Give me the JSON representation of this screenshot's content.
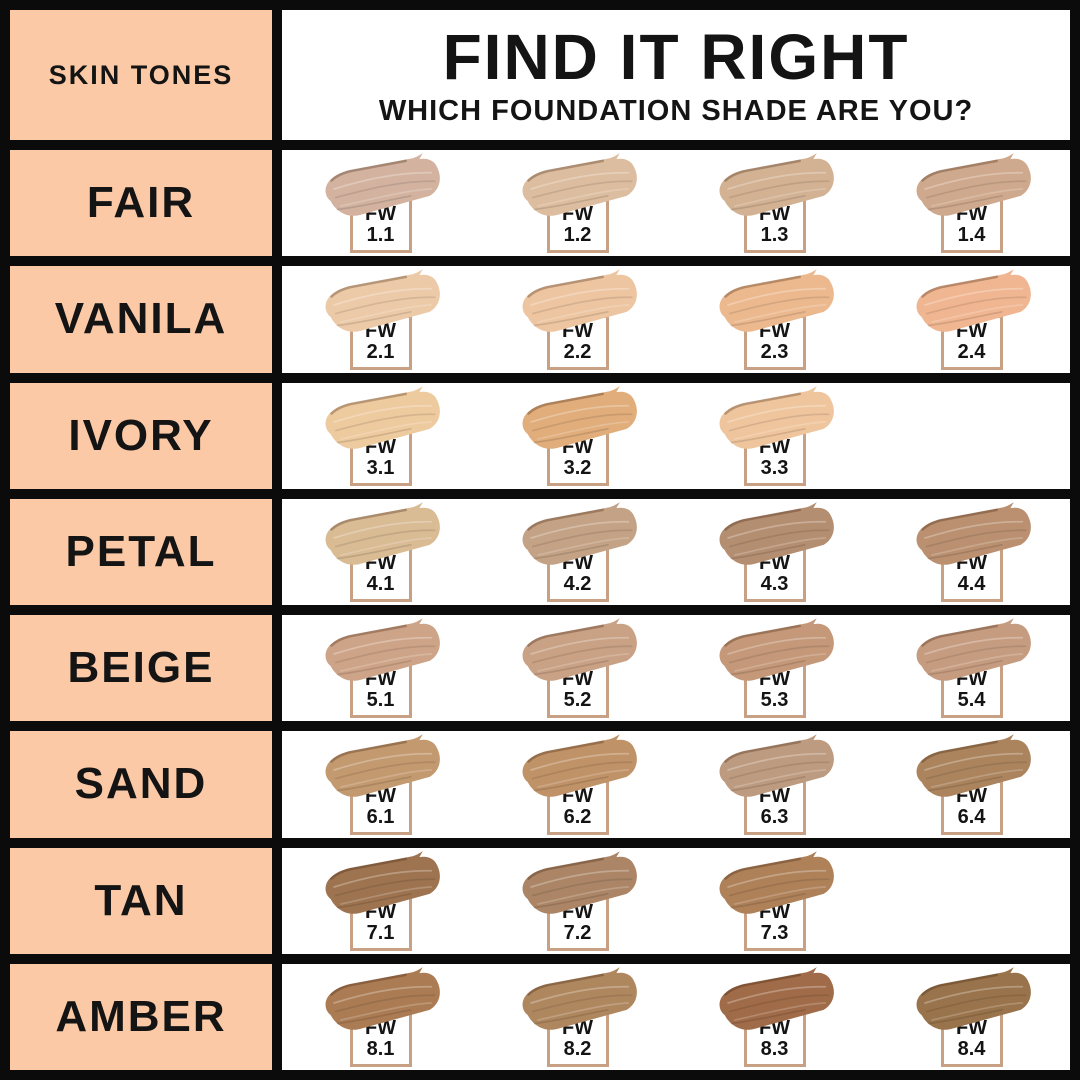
{
  "header": {
    "skin_tones_label": "SKIN TONES",
    "title": "FIND IT RIGHT",
    "subtitle": "WHICH FOUNDATION SHADE ARE YOU?"
  },
  "colors": {
    "grid_black": "#0b0b0b",
    "tone_cell_peach": "#fbc9a6",
    "tag_border_tan": "#c8a184",
    "text_black": "#141414",
    "cell_white": "#ffffff"
  },
  "chart_data": {
    "type": "table",
    "title": "FIND IT RIGHT",
    "subtitle": "WHICH FOUNDATION SHADE ARE YOU?",
    "row_header": "SKIN TONES",
    "categories": [
      "FAIR",
      "VANILA",
      "IVORY",
      "PETAL",
      "BEIGE",
      "SAND",
      "TAN",
      "AMBER"
    ],
    "values": [
      [
        "FW 1.1",
        "FW 1.2",
        "FW 1.3",
        "FW 1.4"
      ],
      [
        "FW 2.1",
        "FW 2.2",
        "FW 2.3",
        "FW 2.4"
      ],
      [
        "FW 3.1",
        "FW 3.2",
        "FW 3.3"
      ],
      [
        "FW 4.1",
        "FW 4.2",
        "FW 4.3",
        "FW 4.4"
      ],
      [
        "FW 5.1",
        "FW 5.2",
        "FW 5.3",
        "FW 5.4"
      ],
      [
        "FW 6.1",
        "FW 6.2",
        "FW 6.3",
        "FW 6.4"
      ],
      [
        "FW 7.1",
        "FW 7.2",
        "FW 7.3"
      ],
      [
        "FW 8.1",
        "FW 8.2",
        "FW 8.3",
        "FW 8.4"
      ]
    ]
  },
  "rows": [
    {
      "tone": "FAIR",
      "shades": [
        {
          "code": "FW",
          "number": "1.1",
          "color": "#d3b3a0"
        },
        {
          "code": "FW",
          "number": "1.2",
          "color": "#ddbd9f"
        },
        {
          "code": "FW",
          "number": "1.3",
          "color": "#d3b293"
        },
        {
          "code": "FW",
          "number": "1.4",
          "color": "#cfa98d"
        }
      ]
    },
    {
      "tone": "VANILA",
      "shades": [
        {
          "code": "FW",
          "number": "2.1",
          "color": "#eccaa8"
        },
        {
          "code": "FW",
          "number": "2.2",
          "color": "#edc5a1"
        },
        {
          "code": "FW",
          "number": "2.3",
          "color": "#ecb98f"
        },
        {
          "code": "FW",
          "number": "2.4",
          "color": "#f0b691"
        }
      ]
    },
    {
      "tone": "IVORY",
      "shades": [
        {
          "code": "FW",
          "number": "3.1",
          "color": "#eeca9f"
        },
        {
          "code": "FW",
          "number": "3.2",
          "color": "#e0ad7b"
        },
        {
          "code": "FW",
          "number": "3.3",
          "color": "#efc59d"
        }
      ]
    },
    {
      "tone": "PETAL",
      "shades": [
        {
          "code": "FW",
          "number": "4.1",
          "color": "#d9bb94"
        },
        {
          "code": "FW",
          "number": "4.2",
          "color": "#c4a285"
        },
        {
          "code": "FW",
          "number": "4.3",
          "color": "#b48e71"
        },
        {
          "code": "FW",
          "number": "4.4",
          "color": "#ba9070"
        }
      ]
    },
    {
      "tone": "BEIGE",
      "shades": [
        {
          "code": "FW",
          "number": "5.1",
          "color": "#cea488"
        },
        {
          "code": "FW",
          "number": "5.2",
          "color": "#c9a184"
        },
        {
          "code": "FW",
          "number": "5.3",
          "color": "#c49878"
        },
        {
          "code": "FW",
          "number": "5.4",
          "color": "#c69c80"
        }
      ]
    },
    {
      "tone": "SAND",
      "shades": [
        {
          "code": "FW",
          "number": "6.1",
          "color": "#c3996f"
        },
        {
          "code": "FW",
          "number": "6.2",
          "color": "#c09267"
        },
        {
          "code": "FW",
          "number": "6.3",
          "color": "#bd9b80"
        },
        {
          "code": "FW",
          "number": "6.4",
          "color": "#ab845e"
        }
      ]
    },
    {
      "tone": "TAN",
      "shades": [
        {
          "code": "FW",
          "number": "7.1",
          "color": "#9e7450"
        },
        {
          "code": "FW",
          "number": "7.2",
          "color": "#ab8566"
        },
        {
          "code": "FW",
          "number": "7.3",
          "color": "#ae8159"
        }
      ]
    },
    {
      "tone": "AMBER",
      "shades": [
        {
          "code": "FW",
          "number": "8.1",
          "color": "#ab7c54"
        },
        {
          "code": "FW",
          "number": "8.2",
          "color": "#af875f"
        },
        {
          "code": "FW",
          "number": "8.3",
          "color": "#a06b48"
        },
        {
          "code": "FW",
          "number": "8.4",
          "color": "#99734b"
        }
      ]
    }
  ]
}
